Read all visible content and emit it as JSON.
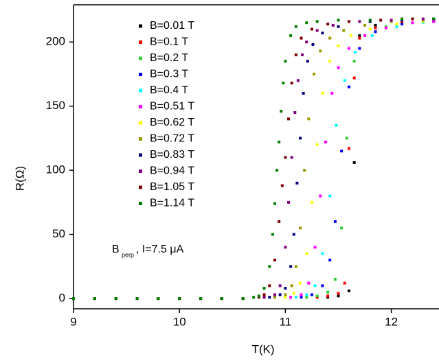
{
  "chart_data": {
    "type": "scatter",
    "x_label": "T(K)",
    "y_label": "R(Ω)",
    "annotation": {
      "main": "B",
      "subscript": "perp",
      "rest": ", I=7.5 μA"
    },
    "xlim": [
      9,
      12.45
    ],
    "ylim": [
      -8,
      229
    ],
    "xticks": [
      9,
      10,
      11,
      12
    ],
    "yticks": [
      0,
      50,
      100,
      150,
      200
    ],
    "series": [
      {
        "name": "B=0.01 T",
        "color": "#000000",
        "x": [
          9.0,
          9.2,
          9.4,
          9.6,
          9.8,
          10.0,
          10.2,
          10.4,
          10.6,
          11.3,
          11.4,
          11.5,
          11.6,
          11.65,
          11.7,
          11.85,
          12.1,
          12.4
        ],
        "values": [
          0,
          0,
          0,
          0,
          0,
          0,
          0,
          0,
          0,
          1,
          1,
          2,
          6,
          106,
          205,
          213,
          216,
          217
        ]
      },
      {
        "name": "B=0.1 T",
        "color": "#ff0000",
        "x": [
          9.0,
          9.2,
          9.4,
          9.6,
          9.8,
          10.0,
          10.2,
          10.4,
          10.6,
          11.3,
          11.4,
          11.5,
          11.56,
          11.6,
          11.65,
          11.7,
          11.85,
          12.1,
          12.4
        ],
        "values": [
          0,
          0,
          0,
          0,
          0,
          0,
          0,
          0,
          0,
          1,
          2,
          4,
          12,
          117,
          172,
          203,
          211,
          215,
          216
        ]
      },
      {
        "name": "B=0.2 T",
        "color": "#33cc33",
        "x": [
          9.0,
          9.2,
          9.4,
          9.6,
          9.8,
          10.0,
          10.2,
          10.4,
          10.6,
          11.2,
          11.3,
          11.4,
          11.47,
          11.53,
          11.58,
          11.65,
          11.75,
          11.95,
          12.2
        ],
        "values": [
          0,
          0,
          0,
          0,
          0,
          0,
          0,
          0,
          0,
          1,
          2,
          5,
          15,
          55,
          125,
          185,
          205,
          212,
          215
        ]
      },
      {
        "name": "B=0.3 T",
        "color": "#0000ff",
        "x": [
          9.0,
          9.2,
          9.4,
          9.6,
          9.8,
          10.0,
          10.2,
          10.4,
          10.6,
          11.15,
          11.25,
          11.35,
          11.42,
          11.47,
          11.53,
          11.6,
          11.7,
          11.85,
          12.1,
          12.4
        ],
        "values": [
          0,
          0,
          0,
          0,
          0,
          0,
          0,
          0,
          0,
          1,
          3,
          10,
          30,
          60,
          115,
          165,
          195,
          208,
          214,
          216
        ]
      },
      {
        "name": "B=0.4 T",
        "color": "#00ffff",
        "x": [
          9.0,
          9.2,
          9.4,
          9.6,
          9.8,
          10.0,
          10.2,
          10.4,
          10.6,
          11.1,
          11.2,
          11.28,
          11.35,
          11.42,
          11.48,
          11.56,
          11.66,
          11.82,
          12.05,
          12.3
        ],
        "values": [
          0,
          0,
          0,
          0,
          0,
          0,
          0,
          0,
          0,
          1,
          3,
          10,
          35,
          80,
          135,
          170,
          192,
          205,
          212,
          215
        ]
      },
      {
        "name": "B=0.51 T",
        "color": "#ff00ff",
        "x": [
          9.0,
          9.2,
          9.4,
          9.6,
          9.8,
          10.0,
          10.2,
          10.4,
          10.6,
          11.05,
          11.15,
          11.22,
          11.28,
          11.33,
          11.38,
          11.44,
          11.5,
          11.6,
          11.75,
          11.95,
          12.2,
          12.4
        ],
        "values": [
          0,
          0,
          0,
          0,
          0,
          0,
          0,
          0,
          0,
          1,
          3,
          12,
          40,
          80,
          122,
          160,
          180,
          195,
          205,
          211,
          215,
          216
        ]
      },
      {
        "name": "B=0.62 T",
        "color": "#ffff00",
        "x": [
          9.0,
          9.2,
          9.4,
          9.6,
          9.8,
          10.0,
          10.2,
          10.4,
          10.6,
          11.0,
          11.08,
          11.14,
          11.2,
          11.25,
          11.3,
          11.35,
          11.42,
          11.5,
          11.62,
          11.8,
          12.05,
          12.3
        ],
        "values": [
          0,
          0,
          0,
          0,
          0,
          0,
          0,
          0,
          0,
          1,
          4,
          12,
          35,
          75,
          120,
          160,
          185,
          197,
          205,
          210,
          214,
          216
        ]
      },
      {
        "name": "B=0.72 T",
        "color": "#999900",
        "x": [
          9.0,
          9.2,
          9.4,
          9.6,
          9.8,
          10.0,
          10.2,
          10.4,
          10.6,
          10.9,
          11.0,
          11.06,
          11.1,
          11.14,
          11.18,
          11.22,
          11.27,
          11.33,
          11.42,
          11.55,
          11.75,
          12.0,
          12.3
        ],
        "values": [
          0,
          0,
          0,
          0,
          0,
          0,
          0,
          0,
          0,
          1,
          3,
          10,
          25,
          55,
          100,
          140,
          175,
          193,
          203,
          209,
          213,
          216,
          217
        ]
      },
      {
        "name": "B=0.83 T",
        "color": "#000080",
        "x": [
          9.0,
          9.2,
          9.4,
          9.6,
          9.8,
          10.0,
          10.2,
          10.4,
          10.6,
          10.85,
          10.95,
          11.0,
          11.05,
          11.08,
          11.11,
          11.14,
          11.17,
          11.21,
          11.26,
          11.35,
          11.5,
          11.8,
          12.1,
          12.4
        ],
        "values": [
          0,
          0,
          0,
          0,
          0,
          0,
          0,
          0,
          0,
          1,
          3,
          8,
          25,
          50,
          90,
          125,
          160,
          185,
          198,
          207,
          212,
          216,
          217,
          218
        ]
      },
      {
        "name": "B=0.94 T",
        "color": "#800080",
        "x": [
          9.0,
          9.2,
          9.4,
          9.6,
          9.8,
          10.0,
          10.2,
          10.4,
          10.6,
          10.8,
          10.9,
          10.95,
          11.0,
          11.03,
          11.06,
          11.09,
          11.12,
          11.16,
          11.2,
          11.3,
          11.45,
          11.7,
          12.0,
          12.3
        ],
        "values": [
          0,
          0,
          0,
          0,
          0,
          0,
          0,
          0,
          0,
          1,
          3,
          10,
          40,
          75,
          110,
          145,
          170,
          190,
          200,
          209,
          213,
          216,
          217,
          218
        ]
      },
      {
        "name": "B=1.05 T",
        "color": "#800000",
        "x": [
          9.0,
          9.2,
          9.4,
          9.6,
          9.8,
          10.0,
          10.2,
          10.4,
          10.6,
          10.75,
          10.8,
          10.85,
          10.9,
          10.94,
          10.97,
          11.0,
          11.03,
          11.06,
          11.1,
          11.15,
          11.25,
          11.4,
          11.6,
          11.9,
          12.2,
          12.4
        ],
        "values": [
          0,
          0,
          0,
          0,
          0,
          0,
          0,
          0,
          0,
          1,
          3,
          10,
          30,
          60,
          88,
          110,
          140,
          168,
          190,
          203,
          210,
          214,
          216,
          217,
          218,
          218
        ]
      },
      {
        "name": "B=1.14 T",
        "color": "#008000",
        "x": [
          9.0,
          9.2,
          9.4,
          9.6,
          9.8,
          10.0,
          10.2,
          10.4,
          10.6,
          10.7,
          10.75,
          10.8,
          10.85,
          10.88,
          10.9,
          10.92,
          10.94,
          10.96,
          10.98,
          11.0,
          11.05,
          11.1,
          11.2,
          11.3,
          11.5,
          11.8,
          12.1,
          12.4
        ],
        "values": [
          0,
          0,
          0,
          0,
          0,
          0,
          0,
          0,
          0,
          1,
          2,
          8,
          25,
          50,
          74,
          100,
          122,
          146,
          168,
          185,
          205,
          212,
          215,
          216,
          217,
          217,
          218,
          218
        ]
      }
    ]
  }
}
